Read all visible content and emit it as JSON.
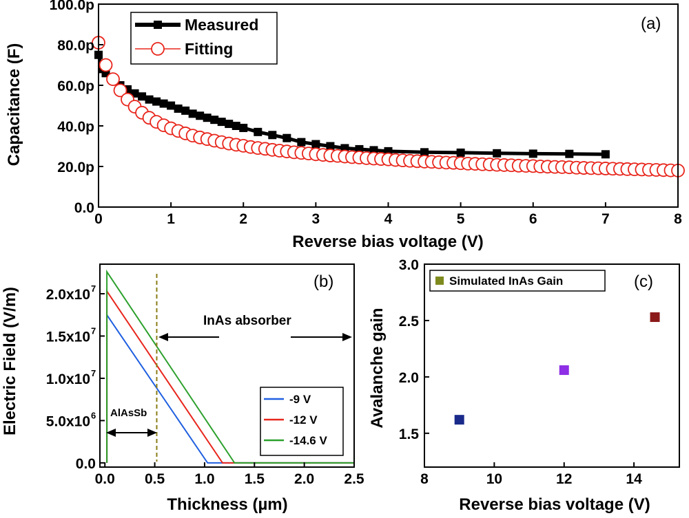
{
  "chart_data": [
    {
      "panel": "(a)",
      "type": "scatter",
      "xlabel": "Reverse bias voltage (V)",
      "ylabel": "Capacitance (F)",
      "xlim": [
        0,
        8
      ],
      "ylim": [
        0,
        100
      ],
      "xticks": [
        "0",
        "1",
        "2",
        "3",
        "4",
        "5",
        "6",
        "7",
        "8"
      ],
      "yticks": [
        "0.0",
        "20.0p",
        "40.0p",
        "60.0p",
        "80.0p",
        "100.0p"
      ],
      "legend_position": "top-left",
      "series": [
        {
          "name": "Measured",
          "marker": "filled-square",
          "color": "#000000",
          "x": [
            0,
            0.05,
            0.1,
            0.2,
            0.3,
            0.4,
            0.5,
            0.6,
            0.7,
            0.8,
            0.9,
            1.0,
            1.1,
            1.2,
            1.3,
            1.4,
            1.5,
            1.6,
            1.7,
            1.8,
            1.9,
            2.0,
            2.2,
            2.4,
            2.6,
            2.8,
            3.0,
            3.2,
            3.4,
            3.6,
            3.8,
            4.0,
            4.5,
            5.0,
            5.5,
            6.0,
            6.5,
            7.0
          ],
          "y": [
            75,
            68,
            66,
            63,
            60,
            58,
            56,
            54.5,
            53,
            52,
            51,
            50,
            48.5,
            47.5,
            46,
            45,
            44,
            43,
            42,
            41,
            40,
            39,
            37,
            35.5,
            34,
            32,
            31,
            30,
            29,
            28.5,
            28,
            27.5,
            27,
            26.8,
            26.5,
            26.3,
            26.2,
            26
          ]
        },
        {
          "name": "Fitting",
          "marker": "open-circle",
          "color": "#e8261c",
          "x": [
            0,
            0.1,
            0.2,
            0.3,
            0.4,
            0.5,
            0.6,
            0.7,
            0.8,
            0.9,
            1.0,
            1.1,
            1.2,
            1.3,
            1.4,
            1.5,
            1.6,
            1.7,
            1.8,
            1.9,
            2.0,
            2.1,
            2.2,
            2.3,
            2.4,
            2.5,
            2.6,
            2.7,
            2.8,
            2.9,
            3.0,
            3.1,
            3.2,
            3.3,
            3.4,
            3.5,
            3.6,
            3.7,
            3.8,
            3.9,
            4.0,
            4.1,
            4.2,
            4.3,
            4.4,
            4.5,
            4.6,
            4.7,
            4.8,
            4.9,
            5.0,
            5.1,
            5.2,
            5.3,
            5.4,
            5.5,
            5.6,
            5.7,
            5.8,
            5.9,
            6.0,
            6.1,
            6.2,
            6.3,
            6.4,
            6.5,
            6.6,
            6.7,
            6.8,
            6.9,
            7.0,
            7.1,
            7.2,
            7.3,
            7.4,
            7.5,
            7.6,
            7.7,
            7.8,
            7.9,
            8.0
          ],
          "y": [
            81,
            70,
            63,
            57.5,
            53,
            49.5,
            46.5,
            44,
            42,
            40.3,
            38.8,
            37.5,
            36.3,
            35.2,
            34.3,
            33.5,
            32.7,
            32.0,
            31.3,
            30.7,
            30.2,
            29.6,
            29.1,
            28.7,
            28.2,
            27.8,
            27.4,
            27.0,
            26.7,
            26.4,
            26.0,
            25.7,
            25.4,
            25.2,
            24.9,
            24.6,
            24.4,
            24.1,
            23.9,
            23.7,
            23.5,
            23.2,
            23.0,
            22.8,
            22.6,
            22.4,
            22.3,
            22.1,
            21.9,
            21.8,
            21.6,
            21.4,
            21.3,
            21.1,
            21.0,
            20.8,
            20.7,
            20.6,
            20.4,
            20.3,
            20.2,
            20.0,
            19.9,
            19.8,
            19.7,
            19.6,
            19.4,
            19.3,
            19.2,
            19.1,
            19.0,
            18.9,
            18.8,
            18.7,
            18.6,
            18.5,
            18.4,
            18.3,
            18.2,
            18.1,
            18.0
          ]
        }
      ]
    },
    {
      "panel": "(b)",
      "type": "line",
      "xlabel": "Thickness (µm)",
      "ylabel": "Electric Field (V/m)",
      "xlim": [
        -0.05,
        2.5
      ],
      "ylim": [
        -500000.0,
        23500000.0
      ],
      "xticks": [
        "0.0",
        "0.5",
        "1.0",
        "1.5",
        "2.0",
        "2.5"
      ],
      "yticks": [
        {
          "value": 0,
          "base": "0.0",
          "exp": ""
        },
        {
          "value": 5000000,
          "base": "5.0x10",
          "exp": "6"
        },
        {
          "value": 10000000,
          "base": "1.0x10",
          "exp": "7"
        },
        {
          "value": 15000000,
          "base": "1.5x10",
          "exp": "7"
        },
        {
          "value": 20000000,
          "base": "2.0x10",
          "exp": "7"
        }
      ],
      "legend_position": "bottom-right",
      "series": [
        {
          "name": "-9 V",
          "color": "#1f5fe0",
          "x": [
            0.02,
            0.02,
            1.03,
            2.5
          ],
          "y": [
            0,
            17500000,
            0,
            0
          ]
        },
        {
          "name": "-12 V",
          "color": "#e8261c",
          "x": [
            0.02,
            0.02,
            1.18,
            2.5
          ],
          "y": [
            0,
            20300000,
            0,
            0
          ]
        },
        {
          "name": "-14.6 V",
          "color": "#2ca02c",
          "x": [
            0.02,
            0.02,
            1.3,
            2.5
          ],
          "y": [
            0,
            22600000,
            0,
            0
          ]
        }
      ],
      "divider_x": 0.52,
      "annotations": {
        "absorber": "InAs absorber",
        "barrier": "AlAsSb"
      }
    },
    {
      "panel": "(c)",
      "type": "scatter",
      "xlabel": "Reverse bias voltage (V)",
      "ylabel": "Avalanche gain",
      "xlim": [
        8,
        15.3
      ],
      "ylim": [
        1.2,
        3.0
      ],
      "xticks": [
        "8",
        "10",
        "12",
        "14"
      ],
      "yticks": [
        "1.5",
        "2.0",
        "2.5",
        "3.0"
      ],
      "legend_position": "top-left",
      "legend": {
        "name": "Simulated InAs Gain",
        "color": "#7f8a1e"
      },
      "points": [
        {
          "x": 9.0,
          "y": 1.62,
          "color": "#1a2a8a"
        },
        {
          "x": 12.0,
          "y": 2.06,
          "color": "#8e2ee6"
        },
        {
          "x": 14.6,
          "y": 2.53,
          "color": "#8b1a1a"
        }
      ]
    }
  ]
}
